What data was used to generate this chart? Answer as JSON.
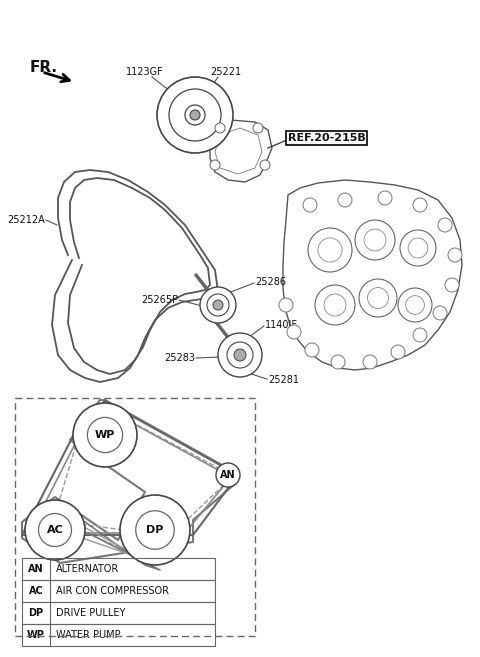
{
  "bg_color": "#ffffff",
  "line_color": "#444444",
  "label_color": "#111111",
  "fr_label": "FR.",
  "ref_label": "REF.20-215B",
  "legend_entries": [
    [
      "AN",
      "ALTERNATOR"
    ],
    [
      "AC",
      "AIR CON COMPRESSOR"
    ],
    [
      "DP",
      "DRIVE PULLEY"
    ],
    [
      "WP",
      "WATER PUMP"
    ]
  ]
}
